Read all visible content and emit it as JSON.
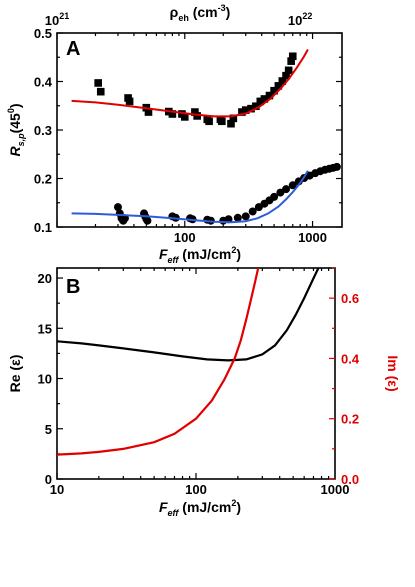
{
  "chart_data": [
    {
      "panel": "A",
      "type": "scatter",
      "panel_label": "A",
      "xlabel": {
        "main": "F",
        "sub": "eff",
        "unit": " (mJ/cm",
        "sup": "2",
        "end": ")"
      },
      "ylabel": {
        "main": "R",
        "sub": "s,p",
        "unit": "(45",
        "sup": "0",
        "end": ")"
      },
      "top_label": {
        "main": "ρ",
        "sub": "eh",
        "unit": " (cm",
        "sup": "-3",
        "end": ")"
      },
      "xscale": "log",
      "xlim": [
        10,
        1700
      ],
      "ylim": [
        0.1,
        0.5
      ],
      "xticks": [
        {
          "v": 100,
          "label": "100"
        },
        {
          "v": 1000,
          "label": "1000"
        }
      ],
      "yticks": [
        {
          "v": 0.1,
          "label": "0.1"
        },
        {
          "v": 0.2,
          "label": "0.2"
        },
        {
          "v": 0.3,
          "label": "0.3"
        },
        {
          "v": 0.4,
          "label": "0.4"
        },
        {
          "v": 0.5,
          "label": "0.5"
        }
      ],
      "top_ticks": [
        {
          "x": 10,
          "base": "10",
          "exp": "21"
        },
        {
          "x": 800,
          "base": "10",
          "exp": "22"
        }
      ],
      "series": [
        {
          "marker": "square",
          "color": "#000000",
          "x": [
            21,
            22,
            36,
            37,
            50,
            52,
            75,
            80,
            95,
            100,
            120,
            125,
            150,
            155,
            190,
            195,
            230,
            240,
            280,
            300,
            330,
            360,
            390,
            420,
            460,
            500,
            540,
            580,
            620,
            650,
            680,
            700
          ],
          "y": [
            0.397,
            0.379,
            0.366,
            0.359,
            0.346,
            0.337,
            0.338,
            0.333,
            0.333,
            0.327,
            0.337,
            0.329,
            0.322,
            0.318,
            0.322,
            0.318,
            0.313,
            0.324,
            0.337,
            0.341,
            0.344,
            0.349,
            0.359,
            0.364,
            0.371,
            0.381,
            0.391,
            0.401,
            0.412,
            0.423,
            0.442,
            0.452
          ]
        },
        {
          "marker": "circle",
          "color": "#000000",
          "x": [
            30,
            31,
            32,
            33,
            34,
            48,
            49,
            50,
            51,
            80,
            85,
            110,
            115,
            150,
            160,
            200,
            220,
            260,
            300,
            340,
            380,
            420,
            460,
            500,
            560,
            620,
            700,
            780,
            860,
            950,
            1050,
            1150,
            1250,
            1350,
            1450,
            1550
          ],
          "y": [
            0.141,
            0.128,
            0.118,
            0.113,
            0.118,
            0.128,
            0.122,
            0.117,
            0.113,
            0.122,
            0.119,
            0.118,
            0.116,
            0.115,
            0.113,
            0.113,
            0.116,
            0.119,
            0.122,
            0.132,
            0.141,
            0.148,
            0.155,
            0.162,
            0.171,
            0.178,
            0.186,
            0.194,
            0.201,
            0.206,
            0.211,
            0.215,
            0.218,
            0.22,
            0.222,
            0.224
          ]
        },
        {
          "marker": "line",
          "color": "#e00000",
          "x": [
            13,
            20,
            30,
            50,
            80,
            120,
            170,
            230,
            300,
            380,
            470,
            560,
            650,
            750,
            850,
            920
          ],
          "y": [
            0.36,
            0.357,
            0.352,
            0.345,
            0.338,
            0.332,
            0.328,
            0.328,
            0.334,
            0.347,
            0.365,
            0.385,
            0.405,
            0.428,
            0.45,
            0.466
          ]
        },
        {
          "marker": "line",
          "color": "#2e5bd9",
          "x": [
            13,
            20,
            30,
            50,
            80,
            120,
            170,
            230,
            300,
            370,
            450,
            540,
            620,
            700,
            780,
            860,
            920
          ],
          "y": [
            0.128,
            0.127,
            0.125,
            0.122,
            0.118,
            0.114,
            0.111,
            0.11,
            0.112,
            0.118,
            0.128,
            0.142,
            0.157,
            0.172,
            0.187,
            0.203,
            0.216
          ]
        }
      ]
    },
    {
      "panel": "B",
      "type": "line",
      "panel_label": "B",
      "xlabel": {
        "main": "F",
        "sub": "eff",
        "unit": " (mJ/cm",
        "sup": "2",
        "end": ")"
      },
      "ylabel_left": "Re (ε)",
      "ylabel_right": "Im (ε)",
      "xscale": "log",
      "xlim": [
        10,
        1000
      ],
      "ylim_left": [
        0,
        21
      ],
      "ylim_right": [
        0,
        0.7
      ],
      "xticks": [
        {
          "v": 10,
          "label": "10"
        },
        {
          "v": 100,
          "label": "100"
        },
        {
          "v": 1000,
          "label": "1000"
        }
      ],
      "yticks_left": [
        {
          "v": 0,
          "label": "0"
        },
        {
          "v": 5,
          "label": "5"
        },
        {
          "v": 10,
          "label": "10"
        },
        {
          "v": 15,
          "label": "15"
        },
        {
          "v": 20,
          "label": "20"
        }
      ],
      "yticks_right": [
        {
          "v": 0,
          "label": "0.0"
        },
        {
          "v": 0.2,
          "label": "0.2"
        },
        {
          "v": 0.4,
          "label": "0.4"
        },
        {
          "v": 0.6,
          "label": "0.6"
        }
      ],
      "series": [
        {
          "axis": "left",
          "color": "#000000",
          "x": [
            10,
            15,
            20,
            30,
            50,
            80,
            120,
            170,
            230,
            300,
            370,
            450,
            520,
            600,
            680,
            760
          ],
          "y": [
            13.7,
            13.5,
            13.3,
            13.0,
            12.6,
            12.2,
            11.9,
            11.8,
            11.9,
            12.4,
            13.3,
            14.8,
            16.3,
            18.0,
            19.6,
            21.0
          ]
        },
        {
          "axis": "right",
          "color": "#e00000",
          "x": [
            10,
            15,
            20,
            30,
            50,
            70,
            100,
            130,
            160,
            190,
            210,
            230,
            250,
            265,
            280
          ],
          "y": [
            0.081,
            0.085,
            0.09,
            0.1,
            0.122,
            0.15,
            0.2,
            0.26,
            0.33,
            0.4,
            0.46,
            0.53,
            0.6,
            0.65,
            0.7
          ]
        }
      ]
    }
  ]
}
